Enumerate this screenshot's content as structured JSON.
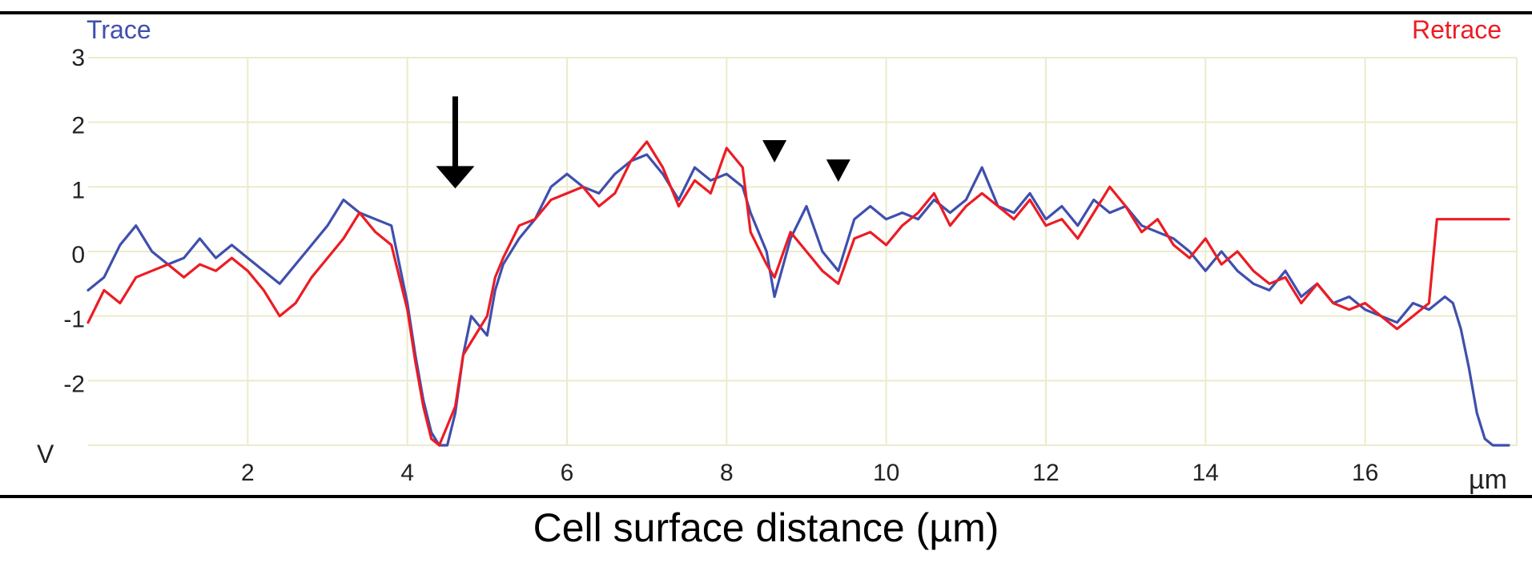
{
  "caption": "Cell surface distance (µm)",
  "chart_data": {
    "type": "line",
    "legend": {
      "trace": "Trace",
      "retrace": "Retrace",
      "placement": "top"
    },
    "y_unit_label": "V",
    "x_unit_label": "µm",
    "xlim": [
      0,
      17.9
    ],
    "ylim": [
      -3,
      3
    ],
    "x_ticks": [
      2,
      4,
      6,
      8,
      10,
      12,
      14,
      16
    ],
    "y_ticks": [
      3,
      2,
      1,
      0,
      -1,
      -2
    ],
    "grid": true,
    "colors": {
      "trace": "#3f4fae",
      "retrace": "#ec1c24",
      "grid": "#ecebcc",
      "axis": "#000000"
    },
    "series": [
      {
        "name": "Trace",
        "color": "#3f4fae",
        "x": [
          0,
          0.2,
          0.4,
          0.6,
          0.8,
          1.0,
          1.2,
          1.4,
          1.6,
          1.8,
          2.0,
          2.2,
          2.4,
          2.6,
          2.8,
          3.0,
          3.2,
          3.4,
          3.6,
          3.8,
          4.0,
          4.1,
          4.2,
          4.3,
          4.4,
          4.5,
          4.6,
          4.7,
          4.8,
          5.0,
          5.1,
          5.2,
          5.4,
          5.6,
          5.8,
          6.0,
          6.2,
          6.4,
          6.6,
          6.8,
          7.0,
          7.2,
          7.4,
          7.6,
          7.8,
          8.0,
          8.2,
          8.3,
          8.5,
          8.6,
          8.8,
          9.0,
          9.2,
          9.4,
          9.6,
          9.8,
          10.0,
          10.2,
          10.4,
          10.6,
          10.8,
          11.0,
          11.2,
          11.4,
          11.6,
          11.8,
          12.0,
          12.2,
          12.4,
          12.6,
          12.8,
          13.0,
          13.2,
          13.4,
          13.6,
          13.8,
          14.0,
          14.2,
          14.4,
          14.6,
          14.8,
          15.0,
          15.2,
          15.4,
          15.6,
          15.8,
          16.0,
          16.2,
          16.4,
          16.6,
          16.8,
          17.0,
          17.1,
          17.2,
          17.3,
          17.4,
          17.5,
          17.6,
          17.8
        ],
        "values": [
          -0.6,
          -0.4,
          0.1,
          0.4,
          0.0,
          -0.2,
          -0.1,
          0.2,
          -0.1,
          0.1,
          -0.1,
          -0.3,
          -0.5,
          -0.2,
          0.1,
          0.4,
          0.8,
          0.6,
          0.5,
          0.4,
          -0.8,
          -1.6,
          -2.3,
          -2.8,
          -3.0,
          -3.0,
          -2.5,
          -1.6,
          -1.0,
          -1.3,
          -0.6,
          -0.2,
          0.2,
          0.5,
          1.0,
          1.2,
          1.0,
          0.9,
          1.2,
          1.4,
          1.5,
          1.2,
          0.8,
          1.3,
          1.1,
          1.2,
          1.0,
          0.6,
          0.0,
          -0.7,
          0.2,
          0.7,
          0.0,
          -0.3,
          0.5,
          0.7,
          0.5,
          0.6,
          0.5,
          0.8,
          0.6,
          0.8,
          1.3,
          0.7,
          0.6,
          0.9,
          0.5,
          0.7,
          0.4,
          0.8,
          0.6,
          0.7,
          0.4,
          0.3,
          0.2,
          0.0,
          -0.3,
          0.0,
          -0.3,
          -0.5,
          -0.6,
          -0.3,
          -0.7,
          -0.5,
          -0.8,
          -0.7,
          -0.9,
          -1.0,
          -1.1,
          -0.8,
          -0.9,
          -0.7,
          -0.8,
          -1.2,
          -1.8,
          -2.5,
          -2.9,
          -3.0,
          -3.0
        ]
      },
      {
        "name": "Retrace",
        "color": "#ec1c24",
        "x": [
          0,
          0.2,
          0.4,
          0.6,
          0.8,
          1.0,
          1.2,
          1.4,
          1.6,
          1.8,
          2.0,
          2.2,
          2.4,
          2.6,
          2.8,
          3.0,
          3.2,
          3.4,
          3.6,
          3.8,
          4.0,
          4.1,
          4.2,
          4.3,
          4.4,
          4.5,
          4.6,
          4.7,
          4.8,
          5.0,
          5.1,
          5.2,
          5.4,
          5.6,
          5.8,
          6.0,
          6.2,
          6.4,
          6.6,
          6.8,
          7.0,
          7.2,
          7.4,
          7.6,
          7.8,
          8.0,
          8.2,
          8.3,
          8.5,
          8.6,
          8.8,
          9.0,
          9.2,
          9.4,
          9.6,
          9.8,
          10.0,
          10.2,
          10.4,
          10.6,
          10.8,
          11.0,
          11.2,
          11.4,
          11.6,
          11.8,
          12.0,
          12.2,
          12.4,
          12.6,
          12.8,
          13.0,
          13.2,
          13.4,
          13.6,
          13.8,
          14.0,
          14.2,
          14.4,
          14.6,
          14.8,
          15.0,
          15.2,
          15.4,
          15.6,
          15.8,
          16.0,
          16.2,
          16.4,
          16.6,
          16.8,
          16.9,
          17.0,
          17.2,
          17.4,
          17.6,
          17.8
        ],
        "values": [
          -1.1,
          -0.6,
          -0.8,
          -0.4,
          -0.3,
          -0.2,
          -0.4,
          -0.2,
          -0.3,
          -0.1,
          -0.3,
          -0.6,
          -1.0,
          -0.8,
          -0.4,
          -0.1,
          0.2,
          0.6,
          0.3,
          0.1,
          -0.9,
          -1.7,
          -2.4,
          -2.9,
          -3.0,
          -2.7,
          -2.4,
          -1.6,
          -1.4,
          -1.0,
          -0.4,
          -0.1,
          0.4,
          0.5,
          0.8,
          0.9,
          1.0,
          0.7,
          0.9,
          1.4,
          1.7,
          1.3,
          0.7,
          1.1,
          0.9,
          1.6,
          1.3,
          0.3,
          -0.2,
          -0.4,
          0.3,
          0.0,
          -0.3,
          -0.5,
          0.2,
          0.3,
          0.1,
          0.4,
          0.6,
          0.9,
          0.4,
          0.7,
          0.9,
          0.7,
          0.5,
          0.8,
          0.4,
          0.5,
          0.2,
          0.6,
          1.0,
          0.7,
          0.3,
          0.5,
          0.1,
          -0.1,
          0.2,
          -0.2,
          0.0,
          -0.3,
          -0.5,
          -0.4,
          -0.8,
          -0.5,
          -0.8,
          -0.9,
          -0.8,
          -1.0,
          -1.2,
          -1.0,
          -0.8,
          0.5,
          0.5,
          0.5,
          0.5,
          0.5,
          0.5
        ]
      }
    ],
    "annotations": [
      {
        "kind": "arrow-down",
        "x": 4.6,
        "y_top": 2.4,
        "y_bottom": 1.0
      },
      {
        "kind": "arrowhead-down",
        "x": 8.6,
        "y": 1.55
      },
      {
        "kind": "arrowhead-down",
        "x": 9.4,
        "y": 1.25
      }
    ]
  }
}
